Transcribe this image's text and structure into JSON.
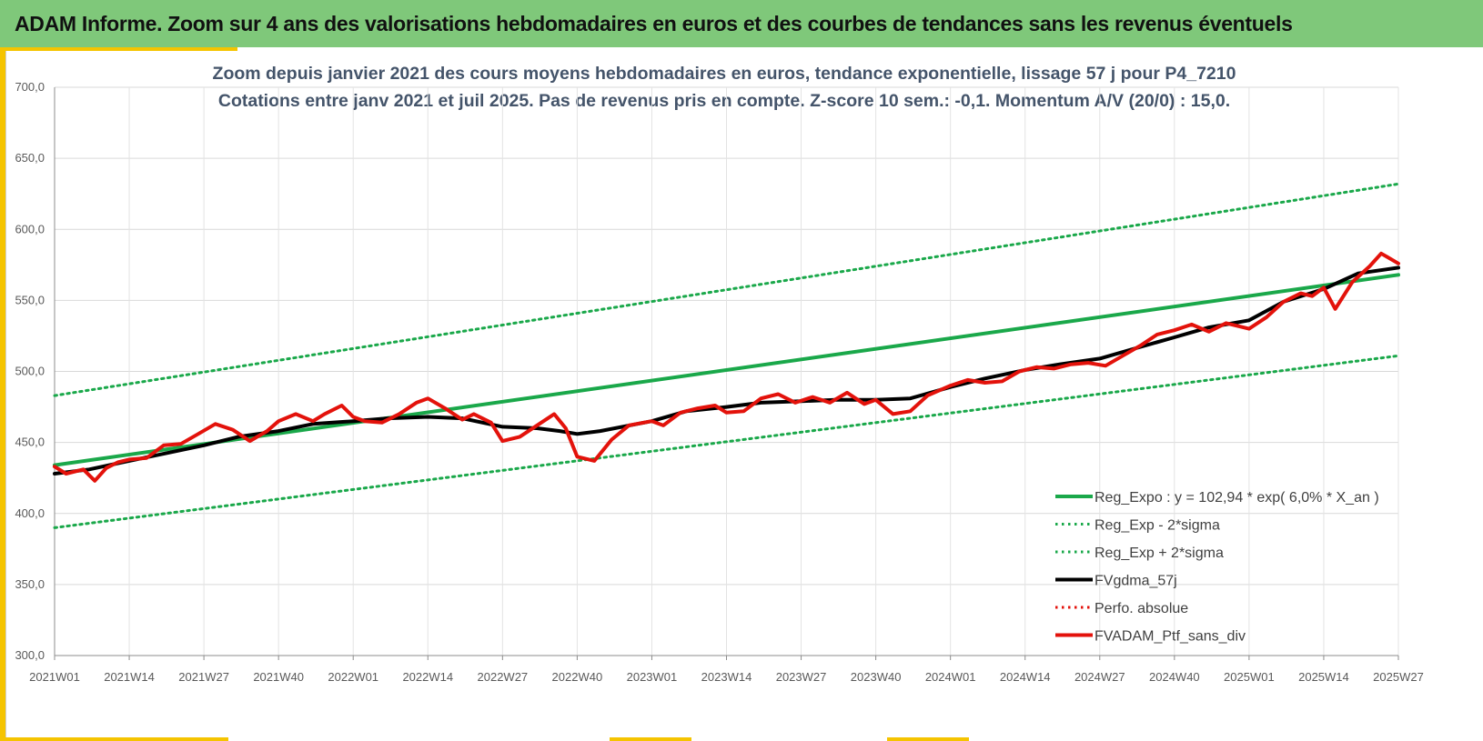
{
  "header": {
    "title": "ADAM Informe. Zoom sur 4 ans des valorisations hebdomadaires en euros et des courbes de tendances sans les revenus éventuels"
  },
  "colors": {
    "banner": "#7fc87a",
    "accent": "#f5c400",
    "trend": "#1aa84a",
    "smooth": "#000000",
    "perf": "#e3120b"
  },
  "chart_data": {
    "type": "line",
    "title": "Zoom depuis janvier 2021 des cours moyens hebdomadaires  en euros, tendance exponentielle, lissage 57 j pour P4_7210",
    "subtitle": "Cotations entre janv 2021 et juil 2025. Pas de revenus pris en compte. Z-score 10 sem.: -0,1. Momentum A/V (20/0) : 15,0.",
    "xlabel": "",
    "ylabel": "",
    "ylim": [
      300,
      700
    ],
    "y_ticks": [
      "300,0",
      "350,0",
      "400,0",
      "450,0",
      "500,0",
      "550,0",
      "600,0",
      "650,0",
      "700,0"
    ],
    "x_ticks": [
      "2021W01",
      "2021W14",
      "2021W27",
      "2021W40",
      "2022W01",
      "2022W14",
      "2022W27",
      "2022W40",
      "2023W01",
      "2023W14",
      "2023W27",
      "2023W40",
      "2024W01",
      "2024W14",
      "2024W27",
      "2024W40",
      "2025W01",
      "2025W14",
      "2025W27"
    ],
    "grid": true,
    "legend_position": "bottom-right",
    "series": [
      {
        "name": "Reg_Expo : y = 102,94 * exp( 6,0% *  X_an )",
        "style": "solid",
        "color": "#1aa84a",
        "width": 4,
        "x": [
          "2021W01",
          "2025W27"
        ],
        "y": [
          434,
          568
        ]
      },
      {
        "name": "Reg_Exp - 2*sigma",
        "style": "dotted",
        "color": "#1aa84a",
        "width": 3,
        "x": [
          "2021W01",
          "2025W27"
        ],
        "y": [
          390,
          511
        ]
      },
      {
        "name": "Reg_Exp + 2*sigma",
        "style": "dotted",
        "color": "#1aa84a",
        "width": 3,
        "x": [
          "2021W01",
          "2025W27"
        ],
        "y": [
          483,
          632
        ]
      },
      {
        "name": "FVgdma_57j",
        "style": "solid",
        "color": "#000000",
        "width": 4,
        "x": [
          "2021W01",
          "2021W07",
          "2021W14",
          "2021W20",
          "2021W27",
          "2021W33",
          "2021W40",
          "2021W46",
          "2022W01",
          "2022W07",
          "2022W14",
          "2022W20",
          "2022W27",
          "2022W33",
          "2022W37",
          "2022W40",
          "2022W44",
          "2023W01",
          "2023W07",
          "2023W14",
          "2023W20",
          "2023W27",
          "2023W33",
          "2023W40",
          "2023W46",
          "2024W01",
          "2024W07",
          "2024W14",
          "2024W20",
          "2024W27",
          "2024W33",
          "2024W40",
          "2024W46",
          "2025W01",
          "2025W07",
          "2025W14",
          "2025W20",
          "2025W27"
        ],
        "y": [
          428,
          431,
          437,
          442,
          448,
          454,
          458,
          463,
          465,
          467,
          468,
          467,
          461,
          460,
          458,
          456,
          458,
          465,
          472,
          475,
          478,
          479,
          480,
          480,
          481,
          489,
          495,
          501,
          505,
          509,
          516,
          524,
          531,
          536,
          549,
          558,
          569,
          573
        ]
      },
      {
        "name": "Perfo. absolue",
        "style": "dotted",
        "color": "#e3120b",
        "width": 3,
        "x": [],
        "y": []
      },
      {
        "name": "FVADAM_Ptf_sans_div",
        "style": "solid",
        "color": "#e3120b",
        "width": 4,
        "x": [
          "2021W01",
          "2021W03",
          "2021W06",
          "2021W08",
          "2021W10",
          "2021W12",
          "2021W14",
          "2021W17",
          "2021W20",
          "2021W23",
          "2021W26",
          "2021W29",
          "2021W32",
          "2021W35",
          "2021W38",
          "2021W40",
          "2021W43",
          "2021W46",
          "2021W48",
          "2021W51",
          "2022W01",
          "2022W03",
          "2022W06",
          "2022W09",
          "2022W12",
          "2022W14",
          "2022W17",
          "2022W20",
          "2022W22",
          "2022W25",
          "2022W27",
          "2022W30",
          "2022W33",
          "2022W36",
          "2022W38",
          "2022W40",
          "2022W43",
          "2022W46",
          "2022W49",
          "2023W01",
          "2023W03",
          "2023W06",
          "2023W09",
          "2023W12",
          "2023W14",
          "2023W17",
          "2023W20",
          "2023W23",
          "2023W26",
          "2023W29",
          "2023W32",
          "2023W35",
          "2023W38",
          "2023W40",
          "2023W43",
          "2023W46",
          "2023W49",
          "2024W01",
          "2024W04",
          "2024W07",
          "2024W10",
          "2024W13",
          "2024W16",
          "2024W19",
          "2024W22",
          "2024W25",
          "2024W28",
          "2024W31",
          "2024W34",
          "2024W37",
          "2024W40",
          "2024W43",
          "2024W46",
          "2024W49",
          "2025W01",
          "2025W04",
          "2025W07",
          "2025W10",
          "2025W12",
          "2025W14",
          "2025W16",
          "2025W19",
          "2025W22",
          "2025W24",
          "2025W27"
        ],
        "y": [
          433,
          428,
          431,
          423,
          432,
          436,
          438,
          439,
          448,
          449,
          456,
          463,
          459,
          451,
          458,
          465,
          470,
          465,
          470,
          476,
          468,
          465,
          464,
          470,
          478,
          481,
          474,
          466,
          470,
          464,
          451,
          454,
          462,
          470,
          460,
          440,
          437,
          452,
          462,
          465,
          462,
          471,
          474,
          476,
          471,
          472,
          481,
          484,
          478,
          482,
          478,
          485,
          477,
          480,
          470,
          472,
          483,
          490,
          494,
          492,
          493,
          500,
          503,
          502,
          505,
          506,
          504,
          511,
          518,
          526,
          529,
          533,
          528,
          534,
          530,
          538,
          549,
          555,
          553,
          559,
          544,
          563,
          574,
          583,
          576
        ]
      }
    ]
  }
}
